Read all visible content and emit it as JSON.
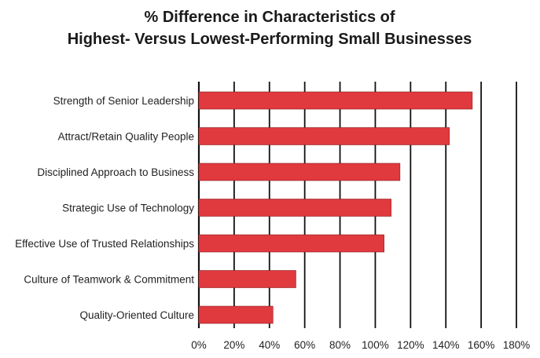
{
  "chart_data": {
    "type": "bar",
    "orientation": "horizontal",
    "title_lines": [
      "% Difference in Characteristics of",
      "Highest- Versus Lowest-Performing Small Businesses"
    ],
    "categories": [
      "Strength of Senior Leadership",
      "Attract/Retain Quality People",
      "Disciplined Approach to Business",
      "Strategic Use of Technology",
      "Effective Use of Trusted Relationships",
      "Culture of Teamwork & Commitment",
      "Quality-Oriented Culture"
    ],
    "values": [
      155,
      142,
      114,
      109,
      105,
      55,
      42
    ],
    "xlim": [
      0,
      180
    ],
    "x_ticks": [
      0,
      20,
      40,
      60,
      80,
      100,
      120,
      140,
      160,
      180
    ],
    "x_tick_labels": [
      "0%",
      "20%",
      "40%",
      "60%",
      "80%",
      "100%",
      "120%",
      "140%",
      "160%",
      "180%"
    ],
    "grid": "vertical",
    "legend": "none",
    "bar_color": "#e0393e",
    "grid_color": "#111111"
  }
}
